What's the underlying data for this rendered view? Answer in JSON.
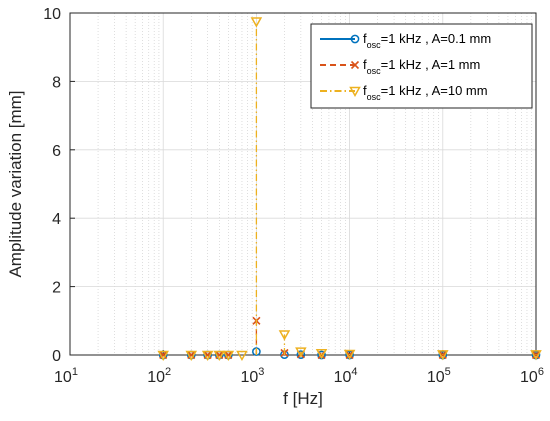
{
  "chart_data": {
    "type": "line",
    "xlabel": "f [Hz]",
    "ylabel": "Amplitude variation [mm]",
    "x_scale": "log",
    "xlim": [
      10,
      1000000
    ],
    "ylim": [
      0,
      10
    ],
    "grid": true,
    "legend_position": "top-right",
    "x_ticks": [
      {
        "value": 10,
        "base": "10",
        "exp": "1"
      },
      {
        "value": 100,
        "base": "10",
        "exp": "2"
      },
      {
        "value": 1000,
        "base": "10",
        "exp": "3"
      },
      {
        "value": 10000,
        "base": "10",
        "exp": "4"
      },
      {
        "value": 100000,
        "base": "10",
        "exp": "5"
      },
      {
        "value": 1000000,
        "base": "10",
        "exp": "6"
      }
    ],
    "y_ticks": [
      "0",
      "2",
      "4",
      "6",
      "8",
      "10"
    ],
    "series": [
      {
        "legend_parts": [
          "f",
          "osc",
          "=1 kHz , A=0.1 mm"
        ],
        "color": "#0072BD",
        "line_style": "solid",
        "marker": "circle",
        "points": [
          [
            100,
            0.0
          ],
          [
            200,
            0.0
          ],
          [
            300,
            0.0
          ],
          [
            400,
            0.0
          ],
          [
            500,
            0.0
          ],
          [
            1000,
            0.1
          ],
          [
            2000,
            0.01
          ],
          [
            3000,
            0.01
          ],
          [
            5000,
            0.0
          ],
          [
            10000,
            0.0
          ],
          [
            100000,
            0.0
          ],
          [
            1000000,
            0.0
          ]
        ]
      },
      {
        "legend_parts": [
          "f",
          "osc",
          "=1 kHz , A=1 mm"
        ],
        "color": "#D95319",
        "line_style": "dashed",
        "marker": "x",
        "points": [
          [
            100,
            0.0
          ],
          [
            200,
            0.0
          ],
          [
            300,
            0.0
          ],
          [
            400,
            0.0
          ],
          [
            500,
            0.0
          ],
          [
            1000,
            1.0
          ],
          [
            2000,
            0.06
          ],
          [
            3000,
            0.02
          ],
          [
            5000,
            0.0
          ],
          [
            10000,
            0.0
          ],
          [
            100000,
            0.0
          ],
          [
            1000000,
            0.0
          ]
        ]
      },
      {
        "legend_parts": [
          "f",
          "osc",
          "=1 kHz , A=10 mm"
        ],
        "color": "#EDB120",
        "line_style": "dashdot",
        "marker": "triangle-down",
        "points": [
          [
            100,
            0.0
          ],
          [
            200,
            0.0
          ],
          [
            300,
            0.0
          ],
          [
            400,
            0.0
          ],
          [
            500,
            0.0
          ],
          [
            700,
            0.0
          ],
          [
            1000,
            9.75
          ],
          [
            2000,
            0.6
          ],
          [
            3000,
            0.1
          ],
          [
            5000,
            0.05
          ],
          [
            10000,
            0.03
          ],
          [
            100000,
            0.02
          ],
          [
            1000000,
            0.02
          ]
        ]
      }
    ]
  }
}
